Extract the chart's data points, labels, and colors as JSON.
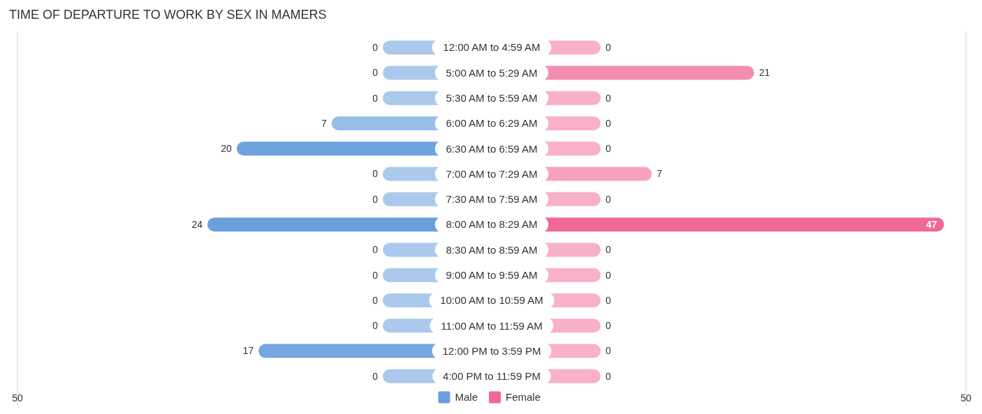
{
  "chart_data": [
    {
      "type": "bar",
      "title": "TIME OF DEPARTURE TO WORK BY SEX IN MAMERS",
      "orientation": "horizontal",
      "categories": [
        "12:00 AM to 4:59 AM",
        "5:00 AM to 5:29 AM",
        "5:30 AM to 5:59 AM",
        "6:00 AM to 6:29 AM",
        "6:30 AM to 6:59 AM",
        "7:00 AM to 7:29 AM",
        "7:30 AM to 7:59 AM",
        "8:00 AM to 8:29 AM",
        "8:30 AM to 8:59 AM",
        "9:00 AM to 9:59 AM",
        "10:00 AM to 10:59 AM",
        "11:00 AM to 11:59 AM",
        "12:00 PM to 3:59 PM",
        "4:00 PM to 11:59 PM"
      ],
      "series": [
        {
          "name": "Male",
          "color": "#6a9fdc",
          "colors": [
            "#aac9ec",
            "#aac9ec",
            "#aac9ec",
            "#98bee8",
            "#6fa3de",
            "#aac9ec",
            "#aac9ec",
            "#6a9fdc",
            "#aac9ec",
            "#aac9ec",
            "#aac9ec",
            "#aac9ec",
            "#74a6df",
            "#aac9ec"
          ],
          "values": [
            0,
            0,
            0,
            7,
            20,
            0,
            0,
            24,
            0,
            0,
            0,
            0,
            17,
            0
          ]
        }
      ],
      "xlim": [
        50,
        0
      ],
      "xticks": [
        50
      ],
      "legend": "bottom",
      "data_labels": true
    },
    {
      "type": "bar",
      "orientation": "horizontal",
      "categories": [
        "12:00 AM to 4:59 AM",
        "5:00 AM to 5:29 AM",
        "5:30 AM to 5:59 AM",
        "6:00 AM to 6:29 AM",
        "6:30 AM to 6:59 AM",
        "7:00 AM to 7:29 AM",
        "7:30 AM to 7:59 AM",
        "8:00 AM to 8:29 AM",
        "8:30 AM to 8:59 AM",
        "9:00 AM to 9:59 AM",
        "10:00 AM to 10:59 AM",
        "11:00 AM to 11:59 AM",
        "12:00 PM to 3:59 PM",
        "4:00 PM to 11:59 PM"
      ],
      "series": [
        {
          "name": "Female",
          "color": "#f06895",
          "colors": [
            "#f8b1c8",
            "#f48db0",
            "#f8b1c8",
            "#f8b1c8",
            "#f8b1c8",
            "#f7a3bf",
            "#f8b1c8",
            "#f06895",
            "#f8b1c8",
            "#f8b1c8",
            "#f8b1c8",
            "#f8b1c8",
            "#f8b1c8",
            "#f8b1c8"
          ],
          "values": [
            0,
            21,
            0,
            0,
            0,
            7,
            0,
            47,
            0,
            0,
            0,
            0,
            0,
            0
          ]
        }
      ],
      "xlim": [
        0,
        50
      ],
      "xticks": [
        50
      ],
      "tick_labels": "x",
      "legend": "bottom",
      "data_labels": true
    }
  ]
}
